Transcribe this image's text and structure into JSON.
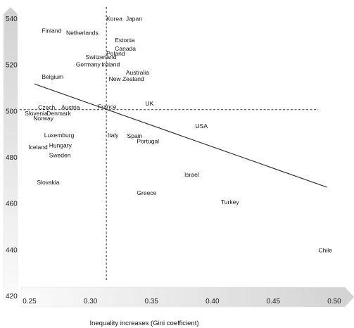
{
  "chart_data": {
    "type": "scatter",
    "xlabel": "Inequality increases (Gini coefficient)",
    "ylabel": "",
    "xlim": [
      0.25,
      0.5
    ],
    "ylim": [
      420,
      540
    ],
    "x_ticks": [
      "0.25",
      "0.30",
      "0.35",
      "0.40",
      "0.45",
      "0.50"
    ],
    "y_ticks": [
      "540",
      "520",
      "500",
      "480",
      "460",
      "440",
      "420"
    ],
    "reference_lines": {
      "x": 0.313,
      "y": 500.5
    },
    "trend_line": {
      "x": [
        0.254,
        0.494
      ],
      "y": [
        511.6,
        466.9
      ]
    },
    "points": [
      {
        "label": "Korea",
        "x": 0.313,
        "y": 539.8
      },
      {
        "label": "Japan",
        "x": 0.329,
        "y": 539.8
      },
      {
        "label": "Finland",
        "x": 0.26,
        "y": 534.6
      },
      {
        "label": "Netherlands",
        "x": 0.28,
        "y": 533.7
      },
      {
        "label": "Estonia",
        "x": 0.32,
        "y": 530.5
      },
      {
        "label": "Canada",
        "x": 0.32,
        "y": 526.9
      },
      {
        "label": "Poland",
        "x": 0.313,
        "y": 524.7
      },
      {
        "label": "Switzerland",
        "x": 0.296,
        "y": 523.2
      },
      {
        "label": "Germany",
        "x": 0.288,
        "y": 520.0
      },
      {
        "label": "Ireland",
        "x": 0.309,
        "y": 520.0
      },
      {
        "label": "Australia",
        "x": 0.329,
        "y": 516.5
      },
      {
        "label": "Belgium",
        "x": 0.26,
        "y": 514.7
      },
      {
        "label": "New Zealand",
        "x": 0.315,
        "y": 513.8
      },
      {
        "label": "UK",
        "x": 0.345,
        "y": 503.2
      },
      {
        "label": "France",
        "x": 0.306,
        "y": 501.8
      },
      {
        "label": "Czech",
        "x": 0.257,
        "y": 501.4
      },
      {
        "label": "Austria",
        "x": 0.276,
        "y": 501.4
      },
      {
        "label": "Slovenia",
        "x": 0.246,
        "y": 498.9
      },
      {
        "label": "Denmark",
        "x": 0.264,
        "y": 498.9
      },
      {
        "label": "Norway",
        "x": 0.253,
        "y": 496.8
      },
      {
        "label": "USA",
        "x": 0.386,
        "y": 493.4
      },
      {
        "label": "Luxemburg",
        "x": 0.262,
        "y": 489.5
      },
      {
        "label": "Italy",
        "x": 0.314,
        "y": 489.5
      },
      {
        "label": "Spain",
        "x": 0.33,
        "y": 489.2
      },
      {
        "label": "Portugal",
        "x": 0.338,
        "y": 486.8
      },
      {
        "label": "Hungary",
        "x": 0.266,
        "y": 485.1
      },
      {
        "label": "Iceland",
        "x": 0.249,
        "y": 484.3
      },
      {
        "label": "Sweden",
        "x": 0.266,
        "y": 480.7
      },
      {
        "label": "Israel",
        "x": 0.377,
        "y": 472.4
      },
      {
        "label": "Slovakia",
        "x": 0.256,
        "y": 469.0
      },
      {
        "label": "Greece",
        "x": 0.338,
        "y": 464.4
      },
      {
        "label": "Turkey",
        "x": 0.407,
        "y": 460.5
      },
      {
        "label": "Chile",
        "x": 0.487,
        "y": 439.7
      }
    ]
  }
}
